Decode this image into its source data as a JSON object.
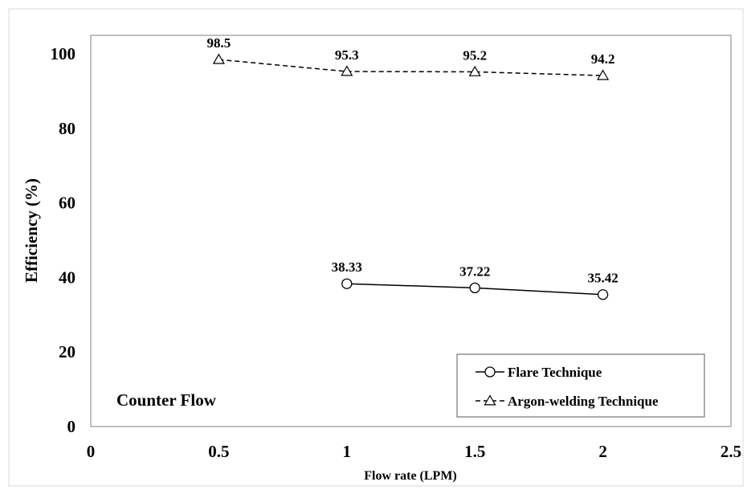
{
  "chart_data": {
    "type": "line",
    "xlabel": "Flow rate (LPM)",
    "ylabel": "Efficiency (%)",
    "xlim": [
      0,
      2.5
    ],
    "ylim": [
      0,
      105
    ],
    "x_ticks": [
      "0",
      "0.5",
      "1",
      "1.5",
      "2",
      "2.5"
    ],
    "y_ticks": [
      "0",
      "20",
      "40",
      "60",
      "80",
      "100"
    ],
    "grid": false,
    "legend_position": "bottom-right",
    "annotation": "Counter Flow",
    "series": [
      {
        "name": "Flare Technique",
        "marker": "circle",
        "line": "solid",
        "x": [
          1,
          1.5,
          2
        ],
        "y": [
          38.33,
          37.22,
          35.42
        ],
        "labels": [
          "38.33",
          "37.22",
          "35.42"
        ]
      },
      {
        "name": "Argon-welding Technique",
        "marker": "triangle",
        "line": "dashed",
        "x": [
          0.5,
          1,
          1.5,
          2
        ],
        "y": [
          98.5,
          95.3,
          95.2,
          94.2
        ],
        "labels": [
          "98.5",
          "95.3",
          "95.2",
          "94.2"
        ]
      }
    ]
  }
}
